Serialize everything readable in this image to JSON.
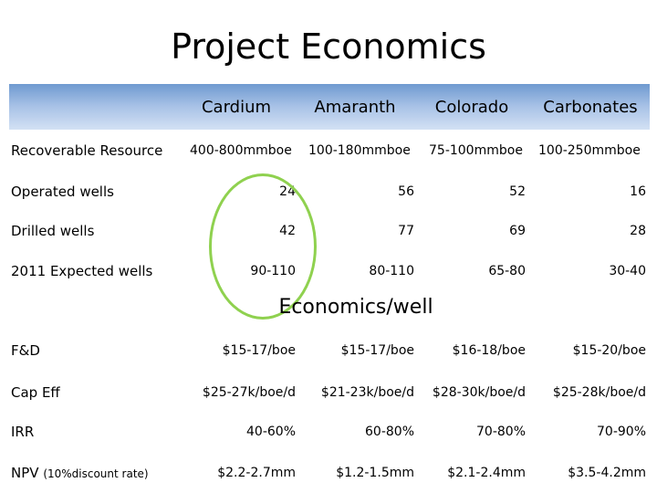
{
  "title": "Project Economics",
  "columns": [
    "Cardium",
    "Amaranth",
    "Colorado",
    "Carbonates"
  ],
  "resource": {
    "label": "Recoverable Resource",
    "values": [
      "400-800mmboe",
      "100-180mmboe",
      "75-100mmboe",
      "100-250mmboe"
    ]
  },
  "well_rows": [
    {
      "label": "Operated wells",
      "values": [
        "24",
        "56",
        "52",
        "16"
      ]
    },
    {
      "label": "Drilled wells",
      "values": [
        "42",
        "77",
        "69",
        "28"
      ]
    },
    {
      "label": "2011 Expected wells",
      "values": [
        "90-110",
        "80-110",
        "65-80",
        "30-40"
      ]
    }
  ],
  "section_title": "Economics/well",
  "econ_rows": [
    {
      "label": "F&D",
      "values": [
        "$15-17/boe",
        "$15-17/boe",
        "$16-18/boe",
        "$15-20/boe"
      ]
    },
    {
      "label": "Cap Eff",
      "values": [
        "$25-27k/boe/d",
        "$21-23k/boe/d",
        "$28-30k/boe/d",
        "$25-28k/boe/d"
      ]
    },
    {
      "label": "IRR",
      "values": [
        "40-60%",
        "60-80%",
        "70-80%",
        "70-90%"
      ]
    },
    {
      "label": "NPV",
      "label_note": "(10%discount rate)",
      "values": [
        "$2.2-2.7mm",
        "$1.2-1.5mm",
        "$2.1-2.4mm",
        "$3.5-4.2mm"
      ]
    }
  ],
  "highlight_color": "#8fd14f",
  "band_color": "#8fb0dd"
}
